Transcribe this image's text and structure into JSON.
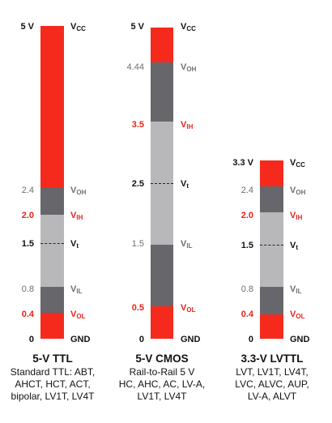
{
  "colors": {
    "red": "#f52a1d",
    "dark_gray": "#67676b",
    "light_gray": "#b8b8bb",
    "label_red": "#e8231a",
    "label_gray": "#6e6e73",
    "label_black": "#111111"
  },
  "columns": [
    {
      "key": "ttl",
      "levels": {
        "vcc": {
          "num": "5 V",
          "name": "V",
          "sub": "CC"
        },
        "voh": {
          "num": "2.4",
          "name": "V",
          "sub": "OH"
        },
        "vih": {
          "num": "2.0",
          "name": "V",
          "sub": "IH"
        },
        "vt": {
          "num": "1.5",
          "name": "V",
          "sub": "t"
        },
        "vil": {
          "num": "0.8",
          "name": "V",
          "sub": "IL"
        },
        "vol": {
          "num": "0.4",
          "name": "V",
          "sub": "OL"
        },
        "gnd": {
          "num": "0",
          "name": "GND"
        }
      },
      "title": "5-V TTL",
      "lines": [
        "Standard TTL: ABT,",
        "AHCT, HCT, ACT,",
        "bipolar, LV1T, LV4T"
      ]
    },
    {
      "key": "cmos",
      "levels": {
        "vcc": {
          "num": "5 V",
          "name": "V",
          "sub": "CC"
        },
        "voh": {
          "num": "4.44",
          "name": "V",
          "sub": "OH"
        },
        "vih": {
          "num": "3.5",
          "name": "V",
          "sub": "IH"
        },
        "vt": {
          "num": "2.5",
          "name": "V",
          "sub": "t"
        },
        "vil": {
          "num": "1.5",
          "name": "V",
          "sub": "IL"
        },
        "vol": {
          "num": "0.5",
          "name": "V",
          "sub": "OL"
        },
        "gnd": {
          "num": "0",
          "name": "GND"
        }
      },
      "title": "5-V CMOS",
      "lines": [
        "Rail-to-Rail 5 V",
        "HC, AHC, AC, LV-A,",
        "LV1T, LV4T"
      ]
    },
    {
      "key": "lvttl",
      "levels": {
        "vcc": {
          "num": "3.3 V",
          "name": "V",
          "sub": "CC"
        },
        "voh": {
          "num": "2.4",
          "name": "V",
          "sub": "OH"
        },
        "vih": {
          "num": "2.0",
          "name": "V",
          "sub": "IH"
        },
        "vt": {
          "num": "1.5",
          "name": "V",
          "sub": "t"
        },
        "vil": {
          "num": "0.8",
          "name": "V",
          "sub": "IL"
        },
        "vol": {
          "num": "0.4",
          "name": "V",
          "sub": "OL"
        },
        "gnd": {
          "num": "0",
          "name": "GND"
        }
      },
      "title": "3.3-V LVTTL",
      "lines": [
        "LVT, LV1T, LV4T,",
        "LVC, ALVC, AUP,",
        "LV-A, ALVT"
      ]
    }
  ]
}
